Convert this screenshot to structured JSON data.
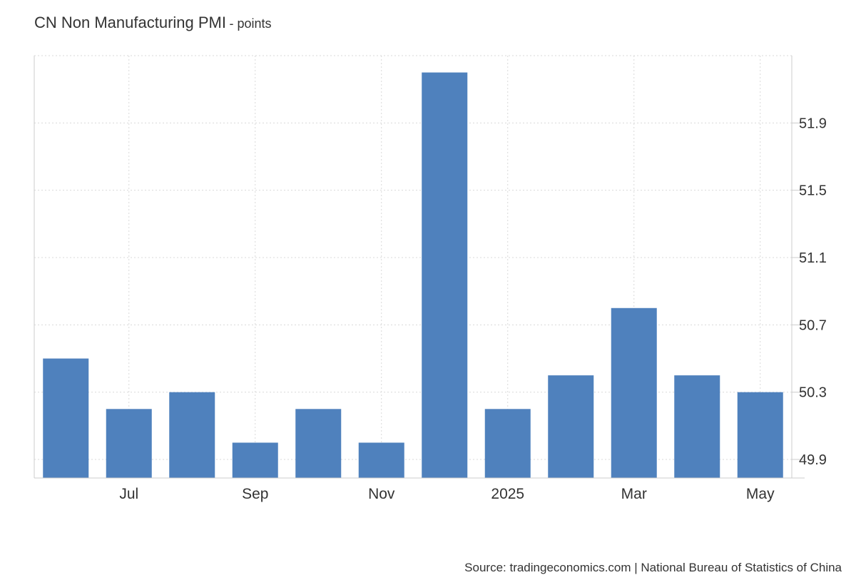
{
  "chart_data": {
    "type": "bar",
    "title": "CN Non Manufacturing PMI",
    "subtitle": "- points",
    "xlabel": "",
    "ylabel": "",
    "months": [
      "Jun 2024",
      "Jul 2024",
      "Aug 2024",
      "Sep 2024",
      "Oct 2024",
      "Nov 2024",
      "Dec 2024",
      "Jan 2025",
      "Feb 2025",
      "Mar 2025",
      "Apr 2025",
      "May 2025"
    ],
    "values": [
      50.5,
      50.2,
      50.3,
      50.0,
      50.2,
      50.0,
      52.2,
      50.2,
      50.4,
      50.8,
      50.4,
      50.3
    ],
    "x_tick_labels": [
      "Jul",
      "Sep",
      "Nov",
      "2025",
      "Mar",
      "May"
    ],
    "x_tick_months": [
      "Jul 2024",
      "Sep 2024",
      "Nov 2024",
      "Jan 2025",
      "Mar 2025",
      "May 2025"
    ],
    "y_ticks": [
      49.9,
      50.3,
      50.7,
      51.1,
      51.5,
      51.9
    ],
    "y_tick_labels": [
      "49.9",
      "50.3",
      "50.7",
      "51.1",
      "51.5",
      "51.9"
    ],
    "ylim": [
      49.79,
      52.3
    ],
    "y_axis_side": "right",
    "grid": true,
    "legend": "none",
    "bar_color": "#4f81bd",
    "grid_color": "#d9d9d9"
  },
  "source": "Source: tradingeconomics.com | National Bureau of Statistics of China"
}
